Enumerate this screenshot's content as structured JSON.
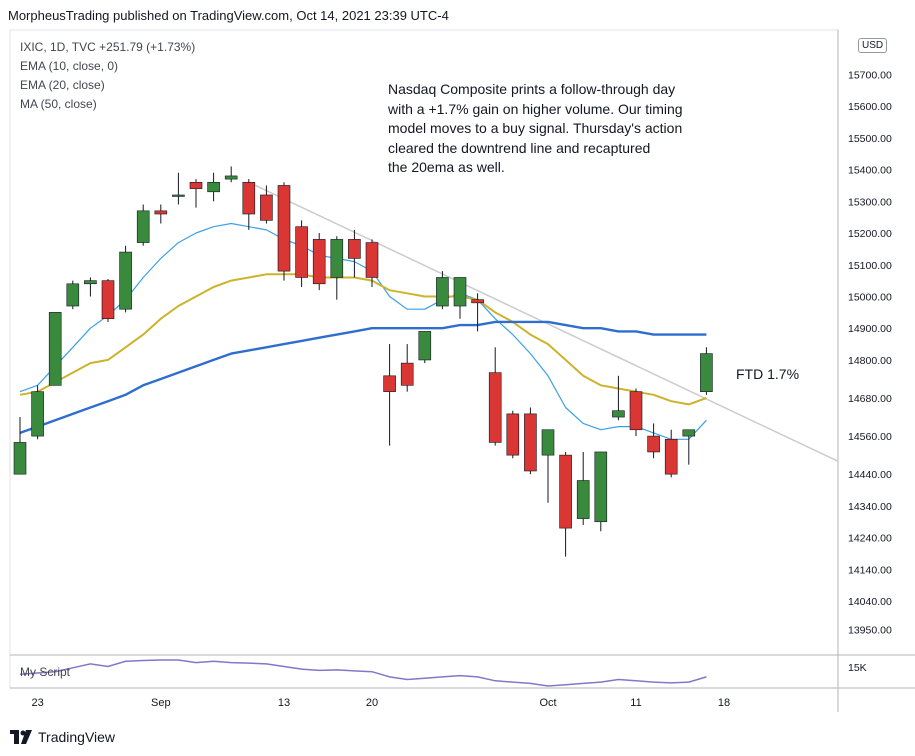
{
  "header": {
    "publish_line": "MorpheusTrading published on TradingView.com, Oct 14, 2021 23:39 UTC-4"
  },
  "legend": {
    "symbol_line": "IXIC, 1D, TVC  +251.79 (+1.73%)",
    "ema10": "EMA (10, close, 0)",
    "ema20": "EMA (20, close)",
    "ma50": "MA (50, close)"
  },
  "annotation": {
    "lines": [
      "Nasdaq Composite prints a follow-through day",
      "with a +1.7% gain on higher volume.  Our timing",
      "model moves to a buy signal.  Thursday's action",
      "cleared the downtrend line and recaptured",
      "the 20ema as well."
    ],
    "ftd_label": "FTD 1.7%"
  },
  "currency": "USD",
  "script_label": "My Script",
  "script_scale_label": "15K",
  "footer": {
    "brand": "TradingView"
  },
  "colors": {
    "up": "#3a8a3e",
    "down": "#d93634",
    "ema10": "#3aa0e8",
    "ema20": "#cdb22b",
    "ma50": "#2f6ecd",
    "trendline": "#cccccc",
    "script": "#8476c9"
  },
  "chart_data": {
    "type": "candlestick",
    "ylim": [
      13870,
      15840
    ],
    "y_ticks": [
      15700,
      15600,
      15500,
      15400,
      15300,
      15200,
      15100,
      15000,
      14900,
      14800,
      14680,
      14560,
      14440,
      14340,
      14240,
      14140,
      14040,
      13950
    ],
    "x_labels": [
      {
        "label": "23",
        "day": 1
      },
      {
        "label": "Sep",
        "day": 8
      },
      {
        "label": "13",
        "day": 15
      },
      {
        "label": "20",
        "day": 20
      },
      {
        "label": "Oct",
        "day": 30
      },
      {
        "label": "11",
        "day": 35
      },
      {
        "label": "18",
        "day": 40
      }
    ],
    "candles": [
      {
        "day": 0,
        "o": 14440,
        "h": 14620,
        "l": 14440,
        "c": 14540
      },
      {
        "day": 1,
        "o": 14560,
        "h": 14720,
        "l": 14550,
        "c": 14700
      },
      {
        "day": 2,
        "o": 14720,
        "h": 14950,
        "l": 14720,
        "c": 14950
      },
      {
        "day": 3,
        "o": 14970,
        "h": 15050,
        "l": 14960,
        "c": 15040
      },
      {
        "day": 4,
        "o": 15040,
        "h": 15060,
        "l": 15000,
        "c": 15050
      },
      {
        "day": 5,
        "o": 15050,
        "h": 15055,
        "l": 14920,
        "c": 14930
      },
      {
        "day": 6,
        "o": 14960,
        "h": 15160,
        "l": 14950,
        "c": 15140
      },
      {
        "day": 7,
        "o": 15170,
        "h": 15290,
        "l": 15160,
        "c": 15270
      },
      {
        "day": 8,
        "o": 15270,
        "h": 15290,
        "l": 15230,
        "c": 15260
      },
      {
        "day": 9,
        "o": 15320,
        "h": 15390,
        "l": 15290,
        "c": 15320
      },
      {
        "day": 10,
        "o": 15360,
        "h": 15370,
        "l": 15280,
        "c": 15340
      },
      {
        "day": 11,
        "o": 15330,
        "h": 15390,
        "l": 15300,
        "c": 15360
      },
      {
        "day": 12,
        "o": 15370,
        "h": 15410,
        "l": 15360,
        "c": 15380
      },
      {
        "day": 13,
        "o": 15360,
        "h": 15370,
        "l": 15210,
        "c": 15260
      },
      {
        "day": 14,
        "o": 15320,
        "h": 15350,
        "l": 15230,
        "c": 15240
      },
      {
        "day": 15,
        "o": 15350,
        "h": 15360,
        "l": 15050,
        "c": 15080
      },
      {
        "day": 16,
        "o": 15220,
        "h": 15240,
        "l": 15030,
        "c": 15060
      },
      {
        "day": 17,
        "o": 15180,
        "h": 15200,
        "l": 15020,
        "c": 15040
      },
      {
        "day": 18,
        "o": 15060,
        "h": 15190,
        "l": 14990,
        "c": 15180
      },
      {
        "day": 19,
        "o": 15180,
        "h": 15210,
        "l": 15060,
        "c": 15120
      },
      {
        "day": 20,
        "o": 15170,
        "h": 15180,
        "l": 15030,
        "c": 15060
      },
      {
        "day": 21,
        "o": 14750,
        "h": 14850,
        "l": 14530,
        "c": 14700
      },
      {
        "day": 22,
        "o": 14790,
        "h": 14850,
        "l": 14700,
        "c": 14720
      },
      {
        "day": 23,
        "o": 14800,
        "h": 14890,
        "l": 14790,
        "c": 14890
      },
      {
        "day": 24,
        "o": 14970,
        "h": 15080,
        "l": 14960,
        "c": 15060
      },
      {
        "day": 25,
        "o": 14970,
        "h": 15060,
        "l": 14930,
        "c": 15060
      },
      {
        "day": 26,
        "o": 14990,
        "h": 15010,
        "l": 14890,
        "c": 14980
      },
      {
        "day": 27,
        "o": 14760,
        "h": 14840,
        "l": 14530,
        "c": 14540
      },
      {
        "day": 28,
        "o": 14630,
        "h": 14640,
        "l": 14490,
        "c": 14500
      },
      {
        "day": 29,
        "o": 14630,
        "h": 14650,
        "l": 14440,
        "c": 14450
      },
      {
        "day": 30,
        "o": 14500,
        "h": 14580,
        "l": 14350,
        "c": 14580
      },
      {
        "day": 31,
        "o": 14500,
        "h": 14510,
        "l": 14180,
        "c": 14270
      },
      {
        "day": 32,
        "o": 14300,
        "h": 14510,
        "l": 14280,
        "c": 14420
      },
      {
        "day": 33,
        "o": 14290,
        "h": 14510,
        "l": 14260,
        "c": 14510
      },
      {
        "day": 34,
        "o": 14620,
        "h": 14750,
        "l": 14610,
        "c": 14640
      },
      {
        "day": 35,
        "o": 14700,
        "h": 14710,
        "l": 14560,
        "c": 14580
      },
      {
        "day": 36,
        "o": 14560,
        "h": 14600,
        "l": 14490,
        "c": 14510
      },
      {
        "day": 37,
        "o": 14550,
        "h": 14580,
        "l": 14430,
        "c": 14440
      },
      {
        "day": 38,
        "o": 14560,
        "h": 14570,
        "l": 14470,
        "c": 14580
      },
      {
        "day": 39,
        "o": 14700,
        "h": 14840,
        "l": 14690,
        "c": 14820
      }
    ],
    "series": [
      {
        "name": "EMA (10, close, 0)",
        "values": [
          14700,
          14720,
          14780,
          14840,
          14900,
          14940,
          14990,
          15060,
          15120,
          15170,
          15200,
          15220,
          15230,
          15220,
          15210,
          15180,
          15160,
          15130,
          15120,
          15110,
          15080,
          15000,
          14960,
          14960,
          14990,
          15010,
          14990,
          14930,
          14880,
          14820,
          14750,
          14650,
          14600,
          14580,
          14590,
          14590,
          14570,
          14550,
          14550,
          14610
        ]
      },
      {
        "name": "EMA (20, close)",
        "values": [
          14690,
          14700,
          14730,
          14760,
          14790,
          14800,
          14840,
          14880,
          14930,
          14970,
          15000,
          15030,
          15050,
          15060,
          15070,
          15070,
          15070,
          15060,
          15060,
          15060,
          15050,
          15020,
          15010,
          15000,
          15000,
          15000,
          14990,
          14950,
          14920,
          14880,
          14850,
          14800,
          14750,
          14720,
          14710,
          14700,
          14690,
          14670,
          14660,
          14680
        ]
      },
      {
        "name": "MA (50, close)",
        "values": [
          14570,
          14590,
          14610,
          14630,
          14650,
          14670,
          14690,
          14720,
          14740,
          14760,
          14780,
          14800,
          14820,
          14830,
          14840,
          14850,
          14860,
          14870,
          14880,
          14890,
          14900,
          14900,
          14900,
          14900,
          14900,
          14910,
          14910,
          14920,
          14920,
          14920,
          14920,
          14910,
          14900,
          14900,
          14890,
          14890,
          14880,
          14880,
          14880,
          14880
        ]
      }
    ],
    "trendline": {
      "from": {
        "day": 13,
        "y": 15360
      },
      "to": {
        "day": 46.5,
        "y": 14480
      }
    },
    "script_values": [
      0.45,
      0.5,
      0.55,
      0.7,
      0.85,
      0.75,
      0.95,
      0.98,
      1.0,
      1.0,
      0.9,
      0.95,
      0.9,
      0.88,
      0.85,
      0.75,
      0.65,
      0.6,
      0.62,
      0.58,
      0.55,
      0.35,
      0.25,
      0.3,
      0.35,
      0.4,
      0.35,
      0.2,
      0.15,
      0.1,
      0.0,
      0.05,
      0.1,
      0.15,
      0.25,
      0.2,
      0.15,
      0.12,
      0.15,
      0.35
    ]
  }
}
